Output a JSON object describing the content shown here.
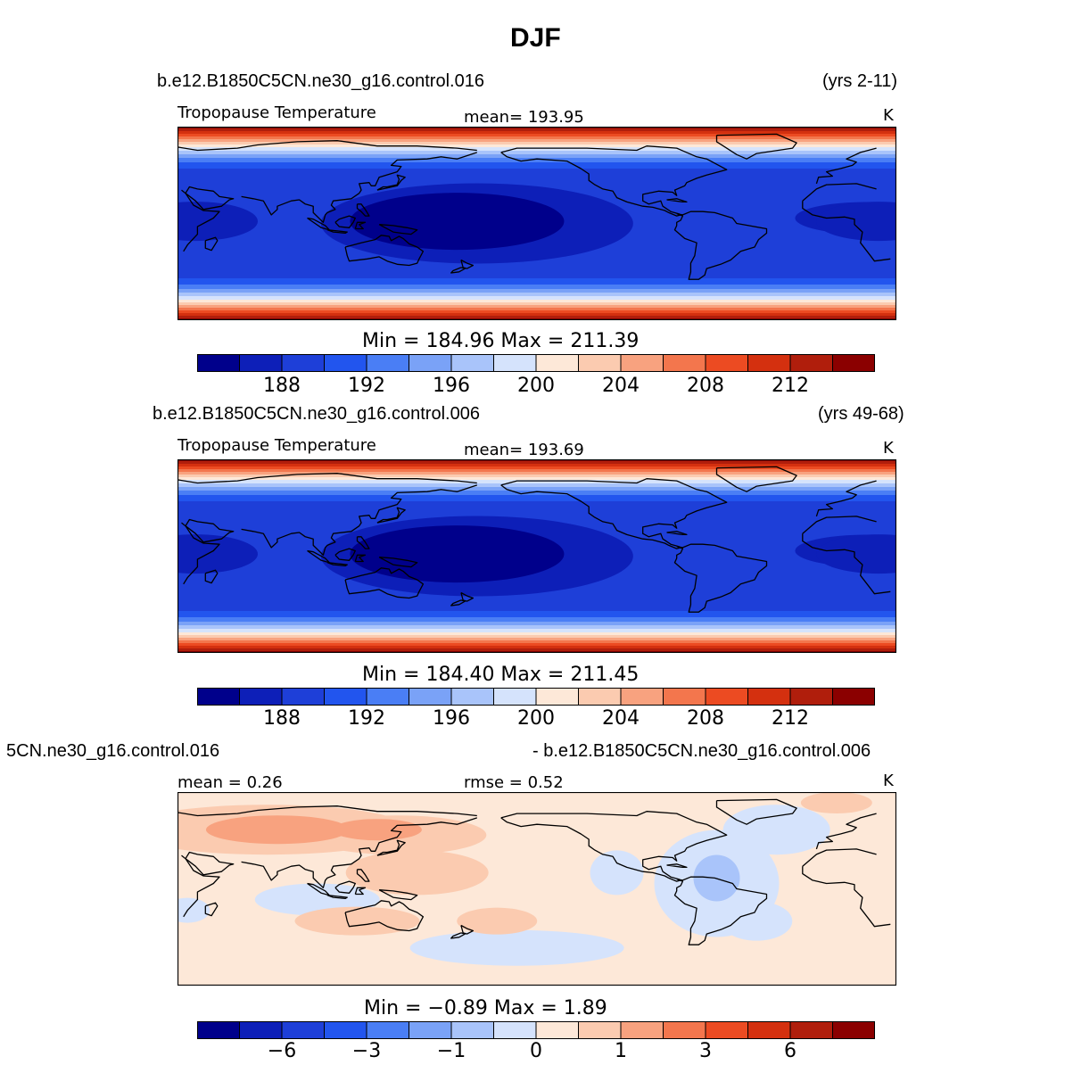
{
  "title": "DJF",
  "palette": [
    "#00008b",
    "#0d1fb8",
    "#1e3fd8",
    "#2255ee",
    "#4a7ef5",
    "#7aa2f7",
    "#a9c4fa",
    "#d5e3fc",
    "#fde8d8",
    "#fbcbb0",
    "#f8a27f",
    "#f3764d",
    "#ec4b22",
    "#d4300f",
    "#b01e0c",
    "#8b0000"
  ],
  "chart_data": [
    {
      "type": "heatmap",
      "case_label": "b.e12.B1850C5CN.ne30_g16.control.016",
      "years_label": "(yrs 2-11)",
      "variable": "Tropopause Temperature",
      "stat_text": "mean=  193.95",
      "units": "K",
      "minmax_text": "Min  =  184.96  Max  =  211.39",
      "min": 184.96,
      "max": 211.39,
      "mean": 193.95,
      "colorbar_ticks": [
        "188",
        "192",
        "196",
        "200",
        "204",
        "208",
        "212"
      ],
      "colorbar_levels": [
        186,
        188,
        190,
        192,
        194,
        196,
        198,
        200,
        202,
        204,
        206,
        208,
        210,
        212,
        214
      ]
    },
    {
      "type": "heatmap",
      "case_label": "b.e12.B1850C5CN.ne30_g16.control.006",
      "years_label": "(yrs 49-68)",
      "variable": "Tropopause Temperature",
      "stat_text": "mean=  193.69",
      "units": "K",
      "minmax_text": "Min  =  184.40  Max  =  211.45",
      "min": 184.4,
      "max": 211.45,
      "mean": 193.69,
      "colorbar_ticks": [
        "188",
        "192",
        "196",
        "200",
        "204",
        "208",
        "212"
      ],
      "colorbar_levels": [
        186,
        188,
        190,
        192,
        194,
        196,
        198,
        200,
        202,
        204,
        206,
        208,
        210,
        212,
        214
      ]
    },
    {
      "type": "heatmap",
      "case_label_left": "5CN.ne30_g16.control.016",
      "case_label_right": "- b.e12.B1850C5CN.ne30_g16.control.006",
      "stat_left": "mean =     0.26",
      "stat_mid": "rmse =     0.52",
      "units": "K",
      "minmax_text": "Min  =    −0.89  Max  =      1.89",
      "min": -0.89,
      "max": 1.89,
      "mean": 0.26,
      "rmse": 0.52,
      "colorbar_ticks": [
        "−6",
        "−3",
        "−1",
        "0",
        "1",
        "3",
        "6"
      ],
      "colorbar_levels": [
        -8,
        -6,
        -4,
        -3,
        -2,
        -1,
        -0.5,
        0,
        0.5,
        1,
        2,
        3,
        4,
        6,
        8
      ]
    }
  ]
}
